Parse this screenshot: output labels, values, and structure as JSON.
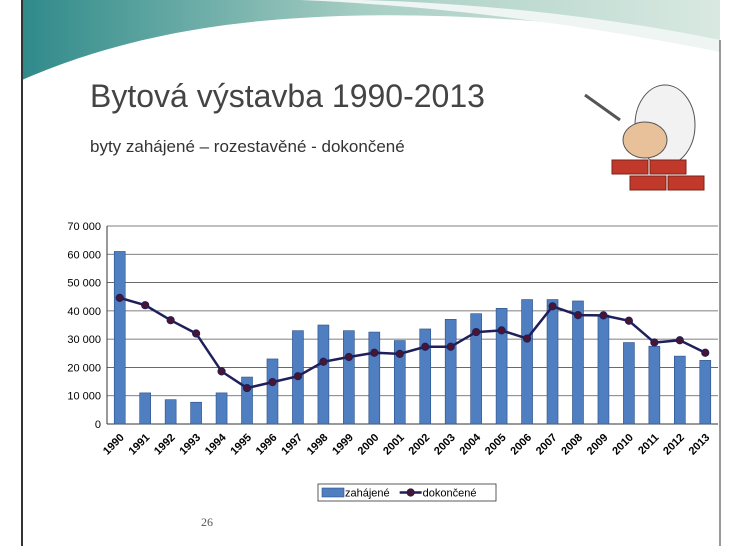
{
  "slide": {
    "title": "Bytová výstavba 1990-2013",
    "subtitle": "byty zahájené – rozestavěné - dokončené",
    "page_number": "26"
  },
  "chart_data": {
    "type": "combo",
    "categories": [
      "1990",
      "1991",
      "1992",
      "1993",
      "1994",
      "1995",
      "1996",
      "1997",
      "1998",
      "1999",
      "2000",
      "2001",
      "2002",
      "2003",
      "2004",
      "2005",
      "2006",
      "2007",
      "2008",
      "2009",
      "2010",
      "2011",
      "2012",
      "2013"
    ],
    "series": [
      {
        "name": "zahájené",
        "type": "bar",
        "color": "#4f7fc0",
        "values": [
          61000,
          11000,
          8600,
          7700,
          11000,
          16600,
          23000,
          33000,
          35000,
          33000,
          32500,
          29500,
          33600,
          37000,
          39000,
          40900,
          44000,
          44000,
          43500,
          38500,
          28800,
          27500,
          24000,
          22500
        ]
      },
      {
        "name": "dokončené",
        "type": "line",
        "color": "#1f1f5c",
        "values": [
          44600,
          42000,
          36700,
          32000,
          18600,
          12700,
          14800,
          16900,
          22000,
          23700,
          25200,
          24800,
          27300,
          27300,
          32500,
          33100,
          30200,
          41600,
          38500,
          38400,
          36500,
          28800,
          29600,
          25200
        ]
      }
    ],
    "ylim": [
      0,
      70000
    ],
    "yticks": [
      0,
      {
        "value": 10000,
        "label": "10 000"
      },
      {
        "value": 20000,
        "label": "20 000"
      },
      {
        "value": 30000,
        "label": "30 000"
      },
      {
        "value": 40000,
        "label": "40 000"
      },
      {
        "value": 50000,
        "label": "50 000"
      },
      {
        "value": 60000,
        "label": "60 000"
      },
      {
        "value": 70000,
        "label": "70 000"
      }
    ],
    "grid": true
  }
}
